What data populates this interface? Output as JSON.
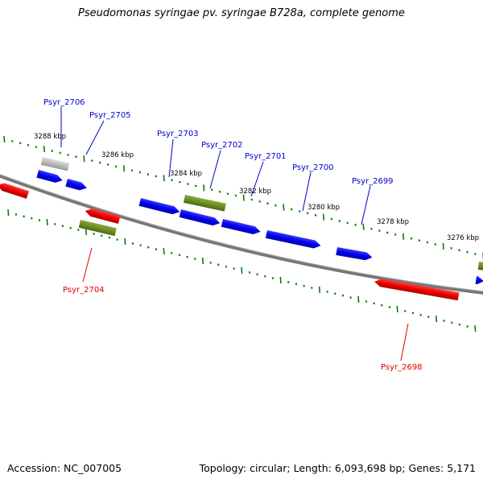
{
  "header": {
    "title": "Pseudomonas syringae pv. syringae B728a, complete genome"
  },
  "footer": {
    "accession": "Accession: NC_007005",
    "genome_info": "Topology: circular; Length: 6,093,698 bp; Genes: 5,171"
  },
  "axis_labels": [
    "3288 kbp",
    "3286 kbp",
    "3284 kbp",
    "3282 kbp",
    "3280 kbp",
    "3278 kbp",
    "3276 kbp"
  ],
  "gene_labels": [
    {
      "text": "Psyr_2706",
      "strand": "forward",
      "color": "#0000cc"
    },
    {
      "text": "Psyr_2705",
      "strand": "forward",
      "color": "#0000cc"
    },
    {
      "text": "Psyr_2703",
      "strand": "forward",
      "color": "#0000cc"
    },
    {
      "text": "Psyr_2702",
      "strand": "forward",
      "color": "#0000cc"
    },
    {
      "text": "Psyr_2701",
      "strand": "forward",
      "color": "#0000cc"
    },
    {
      "text": "Psyr_2700",
      "strand": "forward",
      "color": "#0000cc"
    },
    {
      "text": "Psyr_2699",
      "strand": "forward",
      "color": "#0000cc"
    },
    {
      "text": "Psyr_2704",
      "strand": "reverse",
      "color": "#dd0000"
    },
    {
      "text": "Psyr_2698",
      "strand": "reverse",
      "color": "#dd0000"
    }
  ],
  "colors": {
    "forward_gene": "#0000ee",
    "reverse_gene": "#ee0000",
    "rna_gene": "#6b8e23",
    "other_gene": "#bbbbbb",
    "backbone": "#777777",
    "tick": "#0a7a0a"
  }
}
